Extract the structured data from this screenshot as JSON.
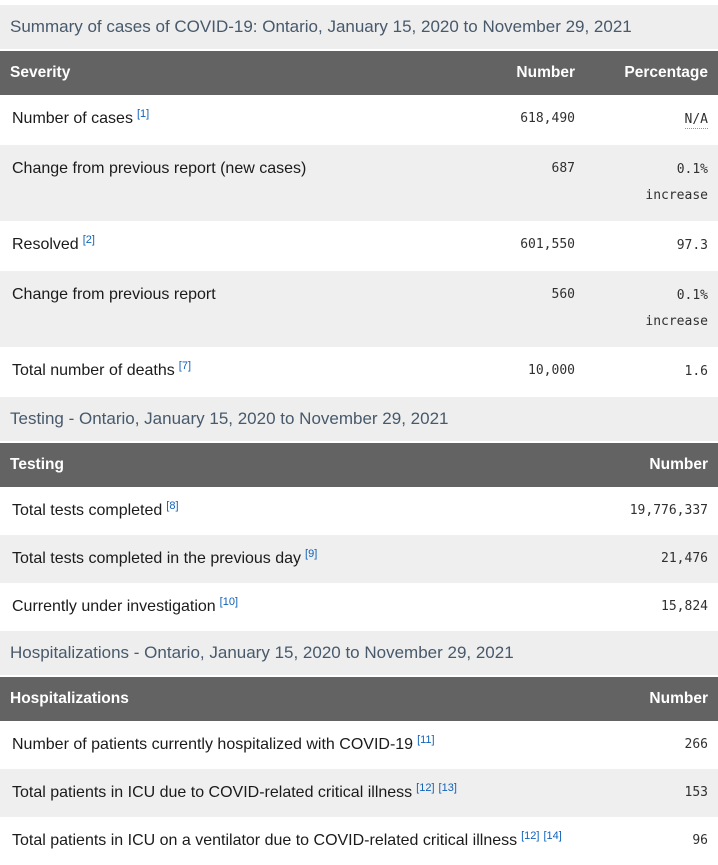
{
  "colors": {
    "caption_bg": "#eeeeee",
    "caption_text": "#47596b",
    "header_bg": "#636363",
    "header_text": "#ffffff",
    "stripe_bg": "#efefef",
    "label_text": "#1b1b1b",
    "number_text": "#303030",
    "footnote_link": "#0f62b8"
  },
  "tables": [
    {
      "caption": "Summary of cases of COVID-19: Ontario, January 15, 2020 to November 29, 2021",
      "columns": [
        "Severity",
        "Number",
        "Percentage"
      ],
      "rows": [
        {
          "label": "Number of cases",
          "footnotes": [
            "[1]"
          ],
          "number": "618,490",
          "percentage": "N/A",
          "abbr": true
        },
        {
          "label": "Change from previous report (new cases)",
          "footnotes": [],
          "number": "687",
          "percentage": "0.1%\nincrease"
        },
        {
          "label": "Resolved",
          "footnotes": [
            "[2]"
          ],
          "number": "601,550",
          "percentage": "97.3"
        },
        {
          "label": "Change from previous report",
          "footnotes": [],
          "number": "560",
          "percentage": "0.1%\nincrease"
        },
        {
          "label": "Total number of deaths",
          "footnotes": [
            "[7]"
          ],
          "number": "10,000",
          "percentage": "1.6"
        }
      ]
    },
    {
      "caption": "Testing - Ontario, January 15, 2020 to November 29, 2021",
      "columns": [
        "Testing",
        "Number"
      ],
      "rows": [
        {
          "label": "Total tests completed",
          "footnotes": [
            "[8]"
          ],
          "number": "19,776,337"
        },
        {
          "label": "Total tests completed in the previous day",
          "footnotes": [
            "[9]"
          ],
          "number": "21,476"
        },
        {
          "label": "Currently under investigation",
          "footnotes": [
            "[10]"
          ],
          "number": "15,824"
        }
      ]
    },
    {
      "caption": "Hospitalizations - Ontario, January 15, 2020 to November 29, 2021",
      "columns": [
        "Hospitalizations",
        "Number"
      ],
      "rows": [
        {
          "label": "Number of patients currently hospitalized with COVID-19",
          "footnotes": [
            "[11]"
          ],
          "number": "266"
        },
        {
          "label": "Total patients in ICU due to COVID-related critical illness",
          "footnotes": [
            "[12]",
            "[13]"
          ],
          "number": "153"
        },
        {
          "label": "Total patients in ICU on a ventilator due to COVID-related critical illness",
          "footnotes": [
            "[12]",
            "[14]"
          ],
          "number": "96"
        }
      ]
    }
  ]
}
